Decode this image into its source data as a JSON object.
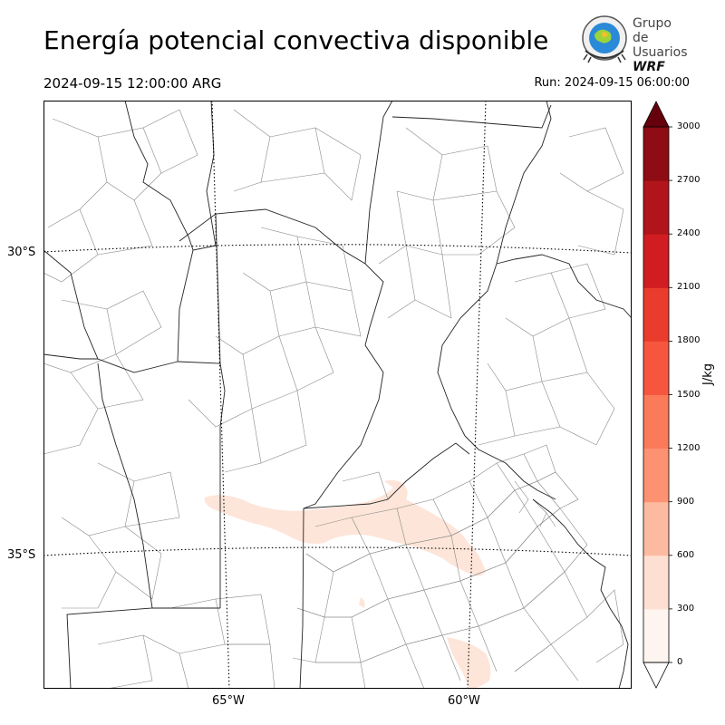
{
  "header": {
    "title": "Energía potencial convectiva disponible",
    "valid_time": "2024-09-15 12:00:00 ARG",
    "run_time": "Run: 2024-09-15 06:00:00"
  },
  "logo": {
    "line1": "Grupo de",
    "line2": "Usuarios",
    "line3": "WRF"
  },
  "map": {
    "lat_labels": [
      "30°S",
      "35°S"
    ],
    "lon_labels": [
      "65°W",
      "60°W"
    ],
    "graticule_style": "dotted",
    "field_color": "#fee5d9"
  },
  "colorbar": {
    "unit": "J/kg",
    "ticks": [
      "0",
      "300",
      "600",
      "900",
      "1200",
      "1500",
      "1800",
      "2100",
      "2400",
      "2700",
      "3000"
    ],
    "colors": [
      "#fff5f0",
      "#fee0d2",
      "#fcbba1",
      "#fc9272",
      "#fb7a5a",
      "#f6563e",
      "#ea3c2c",
      "#d11d21",
      "#b2141b",
      "#8e0c14",
      "#67000d"
    ],
    "extend": "both"
  }
}
